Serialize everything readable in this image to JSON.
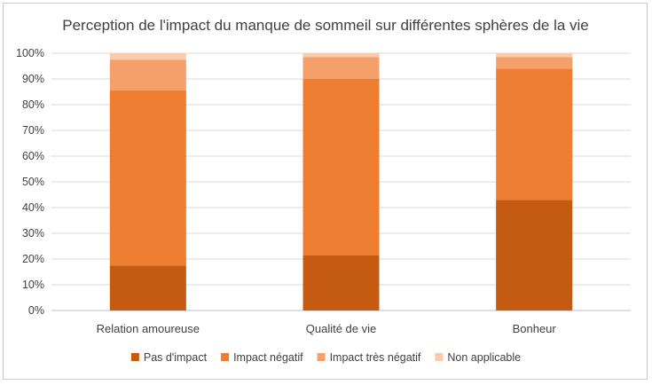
{
  "chart_data": {
    "type": "bar",
    "stacked": true,
    "title": "Perception de l'impact du manque de sommeil sur différentes sphères de la vie",
    "xlabel": "",
    "ylabel": "",
    "ylim": [
      0,
      100
    ],
    "y_ticks": [
      "0%",
      "10%",
      "20%",
      "30%",
      "40%",
      "50%",
      "60%",
      "70%",
      "80%",
      "90%",
      "100%"
    ],
    "grid": true,
    "legend_position": "bottom",
    "categories": [
      "Relation amoureuse",
      "Qualité de vie",
      "Bonheur"
    ],
    "series": [
      {
        "name": "Pas d'impact",
        "color": "#c55a11",
        "values": [
          17.5,
          21.5,
          43
        ]
      },
      {
        "name": "Impact négatif",
        "color": "#ed7d31",
        "values": [
          68,
          68.5,
          51
        ]
      },
      {
        "name": "Impact très négatif",
        "color": "#f4a06b",
        "values": [
          12,
          8.5,
          4.5
        ]
      },
      {
        "name": "Non applicable",
        "color": "#f8cbad",
        "values": [
          2.5,
          1.5,
          1.5
        ]
      }
    ]
  }
}
